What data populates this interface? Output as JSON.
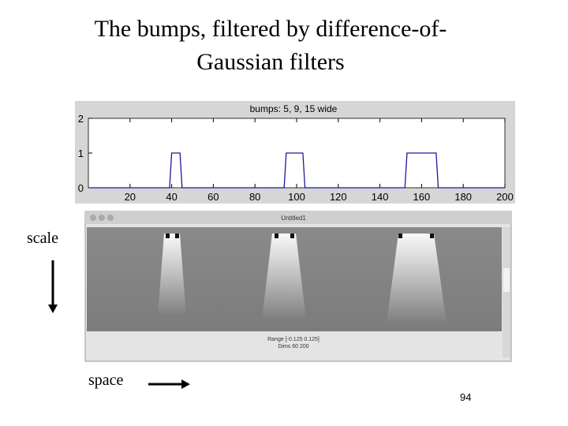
{
  "title": [
    "The bumps, filtered by difference-of-",
    "Gaussian filters"
  ],
  "chart_data": {
    "type": "line",
    "title": "bumps: 5, 9, 15 wide",
    "x": [
      1,
      39,
      40,
      44,
      45,
      94,
      95,
      103,
      104,
      152,
      153,
      167,
      168,
      200
    ],
    "values": [
      0,
      0,
      1,
      1,
      0,
      0,
      1,
      1,
      0,
      0,
      1,
      1,
      0,
      0
    ],
    "color": "#1a1a9c",
    "xlim": [
      0,
      200
    ],
    "xticks": [
      20,
      40,
      60,
      80,
      100,
      120,
      140,
      160,
      180,
      200
    ],
    "ylim": [
      0,
      2
    ],
    "yticks": [
      0,
      1,
      2
    ],
    "grid": false
  },
  "window": {
    "title": "Untitled1",
    "status": [
      "Range [-0.125 0.125]",
      "Dims 60 200"
    ]
  },
  "labels": {
    "scale": "scale",
    "space": "space"
  },
  "page_number": "94"
}
